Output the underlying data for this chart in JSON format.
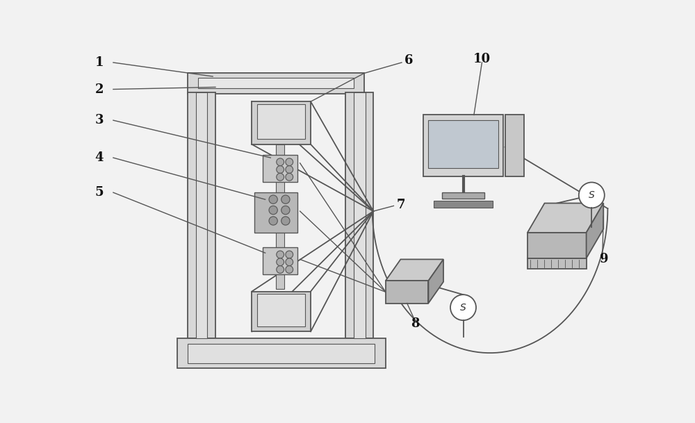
{
  "lc": "#555555",
  "lc2": "#888888",
  "wf": "#ffffff",
  "bg": "#f0f0f0",
  "frame_fill": "#d8d8d8",
  "frame_fill2": "#e8e8e8",
  "dark": "#aaaaaa",
  "lw": 1.3
}
